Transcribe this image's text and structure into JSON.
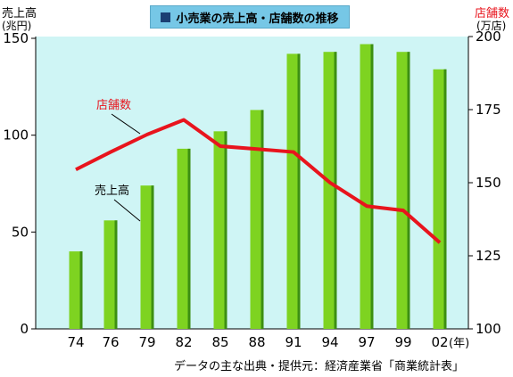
{
  "title": "小売業の売上高・店舗数の推移",
  "left_axis_title": [
    "売上高",
    "(兆円)"
  ],
  "right_axis_title": [
    "店舗数",
    "(万店)"
  ],
  "source": "データの主な出典・提供元：経済産業省「商業統計表」",
  "colors": {
    "bar": "#7ed321",
    "bar_dark": "#3c8f12",
    "line": "#e8141d",
    "plot_bg": "#cff5f5",
    "title_bg": "#76c7e6"
  },
  "chart_data": {
    "type": "bar+line",
    "categories": [
      "74",
      "76",
      "79",
      "82",
      "85",
      "88",
      "91",
      "94",
      "97",
      "99",
      "02"
    ],
    "x_unit_suffix": "(年)",
    "series": [
      {
        "name": "売上高",
        "type": "bar",
        "axis": "left",
        "values": [
          40,
          56,
          74,
          93,
          102,
          113,
          142,
          143,
          147,
          143,
          134
        ]
      },
      {
        "name": "店舗数",
        "type": "line",
        "axis": "right",
        "values": [
          154.5,
          160.5,
          166.5,
          171.5,
          162.5,
          161.5,
          160.5,
          150,
          142,
          140.5,
          129.5
        ]
      }
    ],
    "left_axis": {
      "ylim": [
        0,
        150
      ],
      "ticks": [
        "0",
        "50",
        "100",
        "150"
      ]
    },
    "right_axis": {
      "ylim": [
        100,
        200
      ],
      "ticks": [
        "100",
        "125",
        "150",
        "175",
        "200"
      ]
    }
  }
}
